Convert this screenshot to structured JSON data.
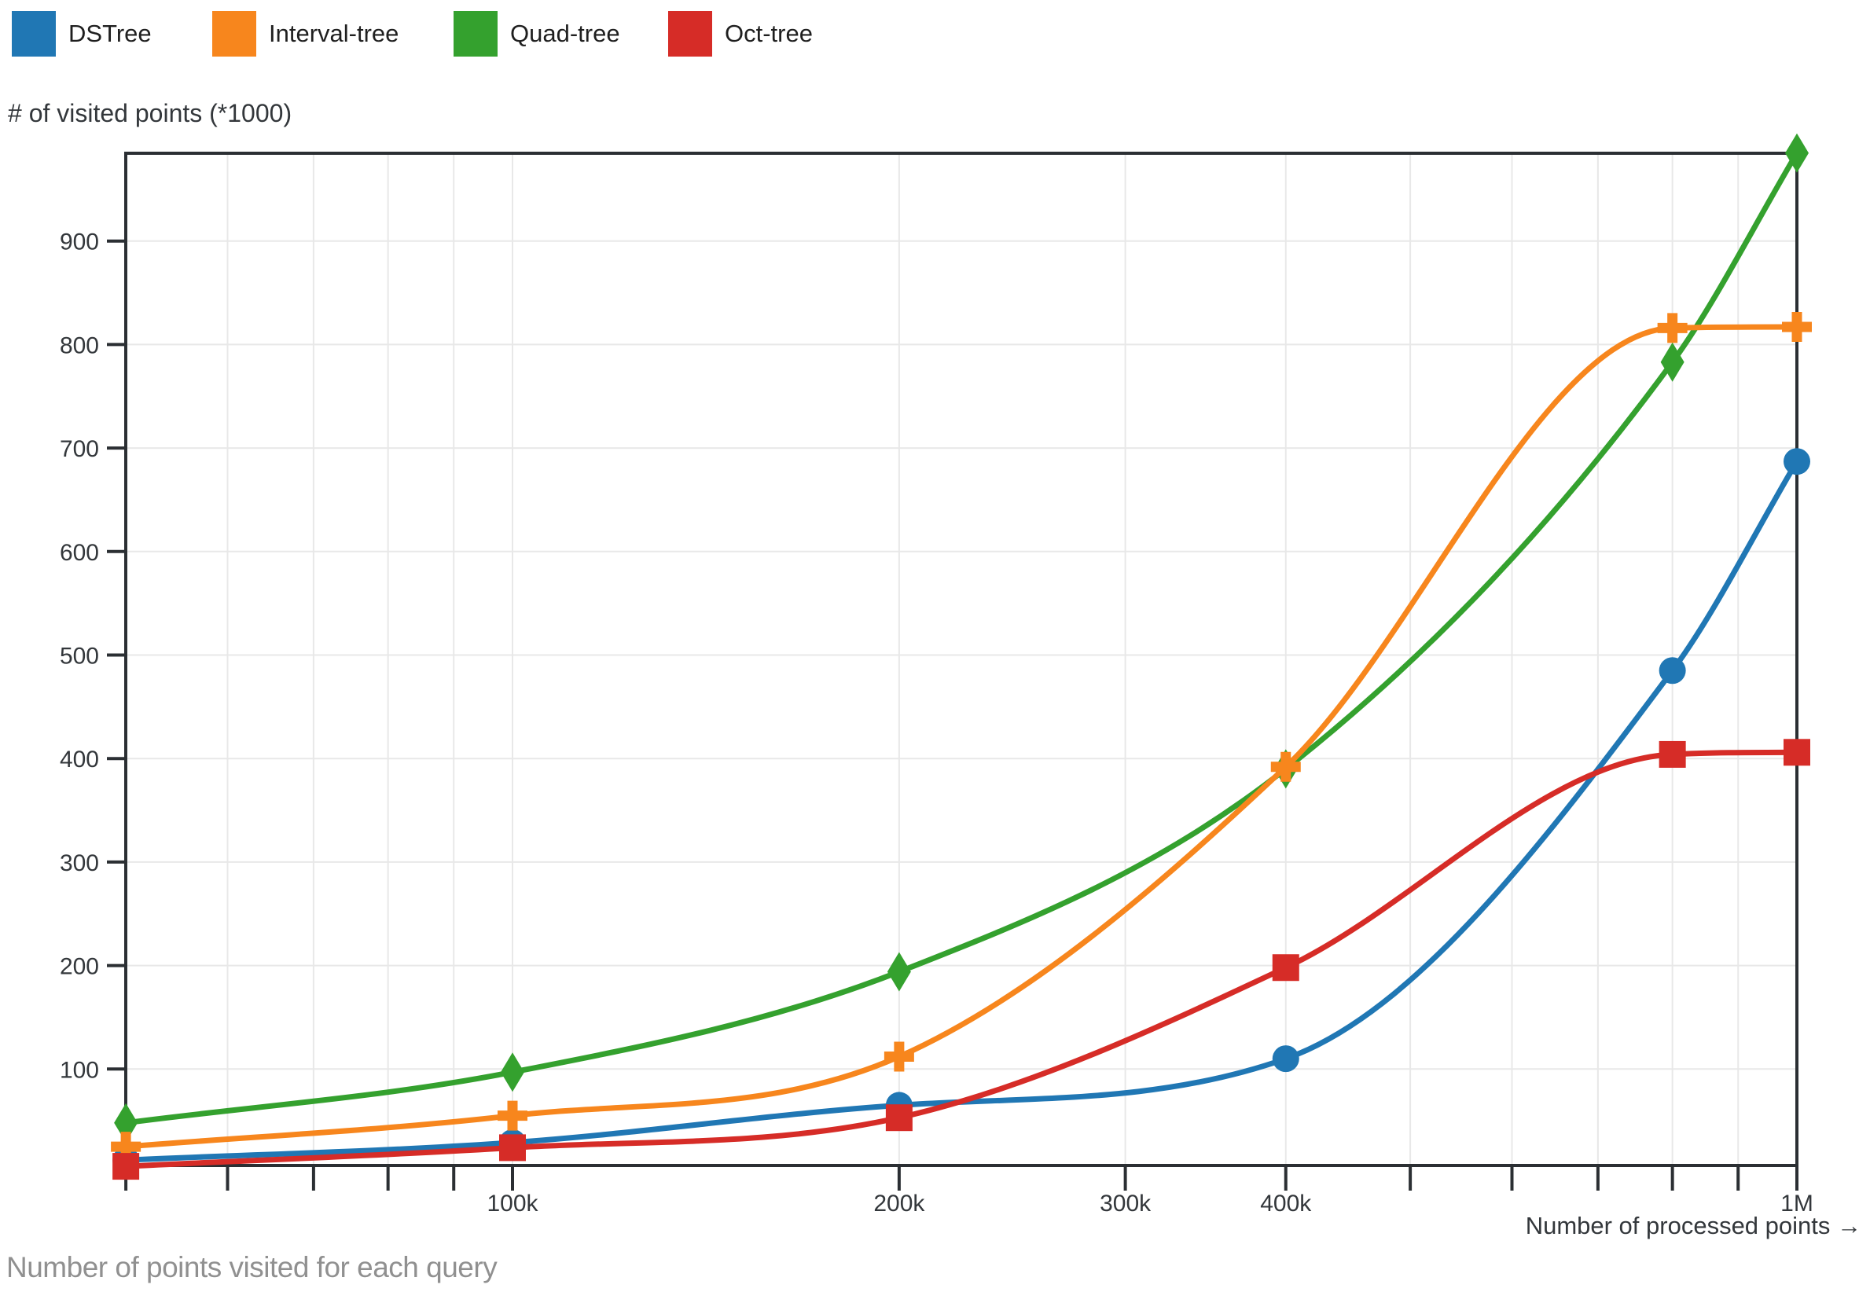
{
  "legend": {
    "items": [
      {
        "label": "DSTree",
        "color": "#2077b4"
      },
      {
        "label": "Interval-tree",
        "color": "#f7861d"
      },
      {
        "label": "Quad-tree",
        "color": "#34a12e"
      },
      {
        "label": "Oct-tree",
        "color": "#d62c27"
      }
    ]
  },
  "y_axis": {
    "title": "# of visited points (*1000)"
  },
  "x_axis": {
    "title": "Number of processed points →"
  },
  "caption": "Number of points visited for each query",
  "chart_data": {
    "type": "line",
    "title": "Number of points visited for each query",
    "xlabel": "Number of processed points →",
    "ylabel": "# of visited points (*1000)",
    "x_scale": "log",
    "grid": true,
    "legend_position": "top-left",
    "xlim": [
      50000,
      1000000
    ],
    "ylim": [
      0,
      985
    ],
    "x": [
      50000,
      100000,
      200000,
      400000,
      800000,
      1000000
    ],
    "series": [
      {
        "name": "DSTree",
        "color": "#2077b4",
        "marker": "circle",
        "values": [
          12,
          29,
          65,
          110,
          485,
          687
        ]
      },
      {
        "name": "Interval-tree",
        "color": "#f7861d",
        "marker": "cross",
        "values": [
          25,
          55,
          112,
          392,
          816,
          817
        ]
      },
      {
        "name": "Quad-tree",
        "color": "#34a12e",
        "marker": "diamond",
        "values": [
          48,
          97,
          194,
          390,
          783,
          985
        ]
      },
      {
        "name": "Oct-tree",
        "color": "#d62c27",
        "marker": "square",
        "values": [
          6,
          24,
          53,
          198,
          404,
          406
        ]
      }
    ],
    "paint_order": [
      2,
      0,
      1,
      3
    ],
    "y_ticks": [
      100,
      200,
      300,
      400,
      500,
      600,
      700,
      800,
      900
    ],
    "x_ticks_labeled": [
      {
        "value": 100000,
        "label": "100k"
      },
      {
        "value": 200000,
        "label": "200k"
      },
      {
        "value": 300000,
        "label": "300k"
      },
      {
        "value": 400000,
        "label": "400k"
      },
      {
        "value": 1000000,
        "label": "1M"
      }
    ],
    "x_ticks_minor": [
      50000,
      60000,
      70000,
      80000,
      90000,
      100000,
      200000,
      300000,
      400000,
      500000,
      600000,
      700000,
      800000,
      900000,
      1000000
    ]
  }
}
